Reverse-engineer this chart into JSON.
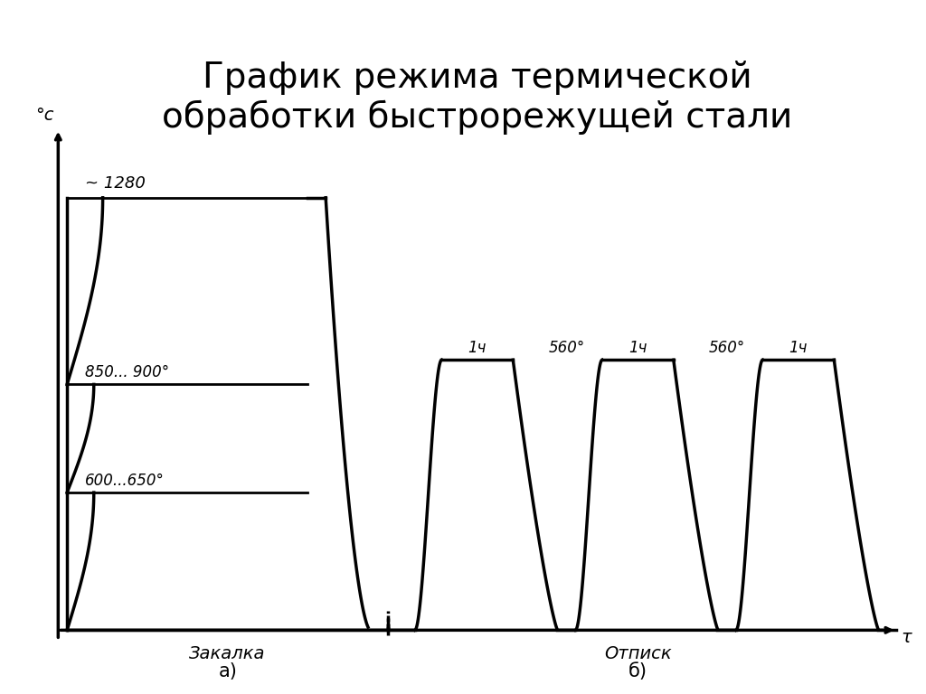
{
  "title": "График режима термической\nобработки быстрорежущей стали",
  "title_fontsize": 28,
  "background_color": "#ffffff",
  "line_color": "#000000",
  "line_width": 2.5,
  "label_zakалка": "Закалка",
  "label_otpusk": "Отписк",
  "label_a": "а)",
  "label_b": "б)",
  "label_tc": "°с",
  "label_tau": "τ",
  "label_1280": "~ 1280",
  "label_850_900": "850... 900°",
  "label_600_650": "600...650°",
  "label_560_1": "560°",
  "label_560_2": "560°",
  "label_1ch_1": "1ч",
  "label_1ch_2": "1ч",
  "label_1ch_3": "1ч"
}
